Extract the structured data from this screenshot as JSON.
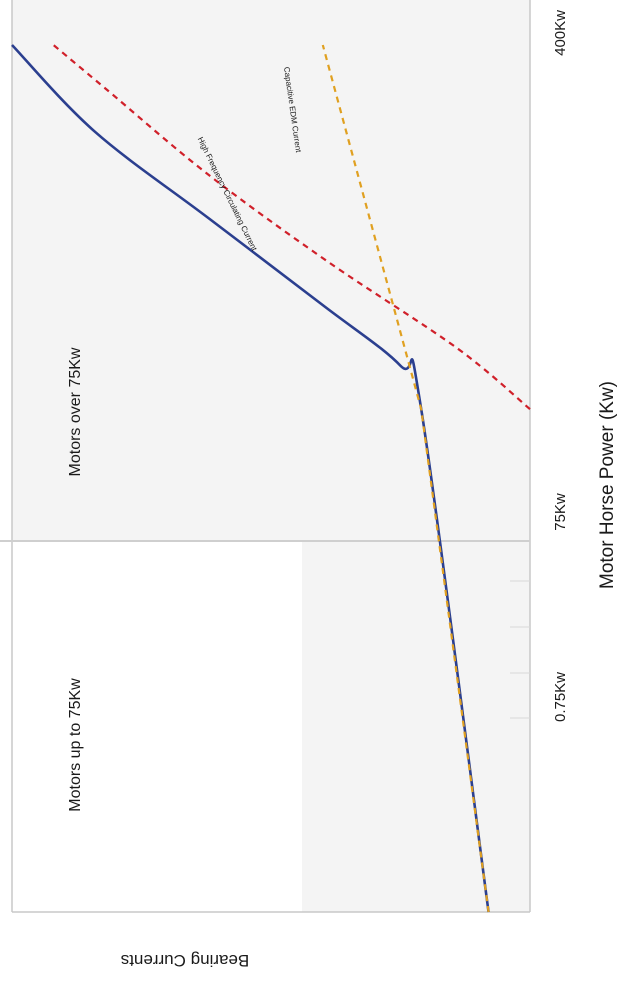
{
  "chart_data": {
    "type": "line",
    "title": "",
    "orientation": "rotated-90-clockwise",
    "xlabel": "Motor Horse Power (Kw)",
    "ylabel": "Bearing Currents",
    "x_ticks": [
      "0.75Kw",
      "75Kw",
      "400Kw"
    ],
    "x_scale": "non-linear (categorical ticks)",
    "grid": false,
    "regions": [
      {
        "label": "Motors up to 75Kw",
        "x_range": [
          "0",
          "75Kw"
        ]
      },
      {
        "label": "Motors over 75Kw",
        "x_range": [
          "75Kw",
          "400Kw"
        ]
      }
    ],
    "divider_at": "75Kw",
    "series": [
      {
        "color": "#2b3f8f",
        "style": "solid",
        "x": [
          0.0,
          0.58,
          0.63,
          0.7,
          0.8,
          0.9,
          1.0
        ],
        "y": [
          0.08,
          0.21,
          0.25,
          0.4,
          0.62,
          0.84,
          1.0
        ]
      },
      {
        "name": "Capacitive EDM Current",
        "color": "#e0a020",
        "style": "dashed",
        "x": [
          0.0,
          0.58,
          1.0
        ],
        "y": [
          0.08,
          0.21,
          0.4
        ]
      },
      {
        "name": "High Frequency Circulating Current",
        "color": "#d0202a",
        "style": "dashed",
        "x": [
          0.58,
          0.65,
          0.75,
          0.85,
          0.95,
          1.0
        ],
        "y": [
          0.0,
          0.14,
          0.39,
          0.62,
          0.82,
          0.92
        ]
      }
    ]
  },
  "colors": {
    "plot_background": "#f4f4f4",
    "frame": "#c8c8c8",
    "divider": "#cfcfcf"
  }
}
